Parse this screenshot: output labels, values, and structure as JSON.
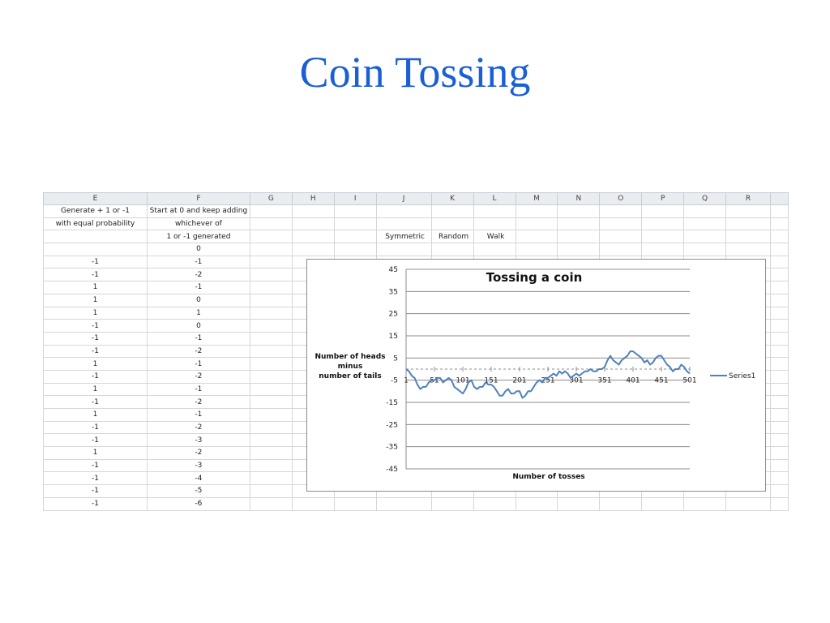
{
  "slide": {
    "title": "Coin Tossing"
  },
  "spreadsheet": {
    "columns": [
      "E",
      "F",
      "G",
      "H",
      "I",
      "J",
      "K",
      "L",
      "M",
      "N",
      "O",
      "P",
      "Q",
      "R",
      ""
    ],
    "header_rows": [
      {
        "E": "Generate + 1 or -1",
        "F": "Start at 0 and keep adding"
      },
      {
        "E": "with equal probability",
        "F": "whichever of"
      },
      {
        "E": "",
        "F": "1 or -1 generated",
        "J": "Symmetric",
        "K": "Random",
        "L": "Walk"
      }
    ],
    "data_rows": [
      {
        "E": "",
        "F": "0"
      },
      {
        "E": "-1",
        "F": "-1"
      },
      {
        "E": "-1",
        "F": "-2"
      },
      {
        "E": "1",
        "F": "-1"
      },
      {
        "E": "1",
        "F": "0"
      },
      {
        "E": "1",
        "F": "1"
      },
      {
        "E": "-1",
        "F": "0"
      },
      {
        "E": "-1",
        "F": "-1"
      },
      {
        "E": "-1",
        "F": "-2"
      },
      {
        "E": "1",
        "F": "-1"
      },
      {
        "E": "-1",
        "F": "-2"
      },
      {
        "E": "1",
        "F": "-1"
      },
      {
        "E": "-1",
        "F": "-2"
      },
      {
        "E": "1",
        "F": "-1"
      },
      {
        "E": "-1",
        "F": "-2"
      },
      {
        "E": "-1",
        "F": "-3"
      },
      {
        "E": "1",
        "F": "-2"
      },
      {
        "E": "-1",
        "F": "-3"
      },
      {
        "E": "-1",
        "F": "-4"
      },
      {
        "E": "-1",
        "F": "-5"
      },
      {
        "E": "-1",
        "F": "-6"
      }
    ]
  },
  "chart_data": {
    "type": "line",
    "title": "Tossing a coin",
    "xlabel": "Number of tosses",
    "ylabel_lines": [
      "Number of heads",
      "minus",
      "number of tails"
    ],
    "ylim": [
      -45,
      45
    ],
    "yticks": [
      45,
      35,
      25,
      15,
      5,
      -5,
      -15,
      -25,
      -35,
      -45
    ],
    "xlim": [
      1,
      501
    ],
    "xticks": [
      1,
      51,
      101,
      151,
      201,
      251,
      301,
      351,
      401,
      451,
      501
    ],
    "legend_position": "right",
    "series": [
      {
        "name": "Series1",
        "color": "#4f81bd",
        "x": [
          1,
          6,
          11,
          16,
          21,
          26,
          31,
          36,
          41,
          46,
          51,
          56,
          61,
          66,
          71,
          76,
          81,
          86,
          91,
          96,
          101,
          106,
          111,
          116,
          121,
          126,
          131,
          136,
          141,
          146,
          151,
          156,
          161,
          166,
          171,
          176,
          181,
          186,
          191,
          196,
          201,
          206,
          211,
          216,
          221,
          226,
          231,
          236,
          241,
          246,
          251,
          256,
          261,
          266,
          271,
          276,
          281,
          286,
          291,
          296,
          301,
          306,
          311,
          316,
          321,
          326,
          331,
          336,
          341,
          346,
          351,
          356,
          361,
          366,
          371,
          376,
          381,
          386,
          391,
          396,
          401,
          406,
          411,
          416,
          421,
          426,
          431,
          436,
          441,
          446,
          451,
          456,
          461,
          466,
          471,
          476,
          481,
          486,
          491,
          496,
          501
        ],
        "y": [
          0,
          -1,
          -3,
          -4,
          -7,
          -9,
          -8,
          -8,
          -6,
          -5,
          -5,
          -4,
          -4,
          -6,
          -5,
          -4,
          -5,
          -8,
          -9,
          -10,
          -11,
          -9,
          -6,
          -5,
          -8,
          -9,
          -8,
          -8,
          -6,
          -7,
          -7,
          -8,
          -10,
          -12,
          -12,
          -10,
          -9,
          -11,
          -11,
          -10,
          -10,
          -13,
          -12,
          -10,
          -10,
          -8,
          -6,
          -5,
          -6,
          -4,
          -4,
          -3,
          -2,
          -3,
          -1,
          -2,
          -1,
          -2,
          -4,
          -3,
          -2,
          -3,
          -2,
          -1,
          -1,
          0,
          -1,
          -1,
          0,
          0,
          1,
          4,
          6,
          4,
          3,
          2,
          4,
          5,
          6,
          8,
          8,
          7,
          6,
          5,
          3,
          4,
          2,
          3,
          5,
          6,
          6,
          4,
          2,
          1,
          -1,
          0,
          0,
          2,
          1,
          -1,
          -2
        ]
      }
    ]
  }
}
